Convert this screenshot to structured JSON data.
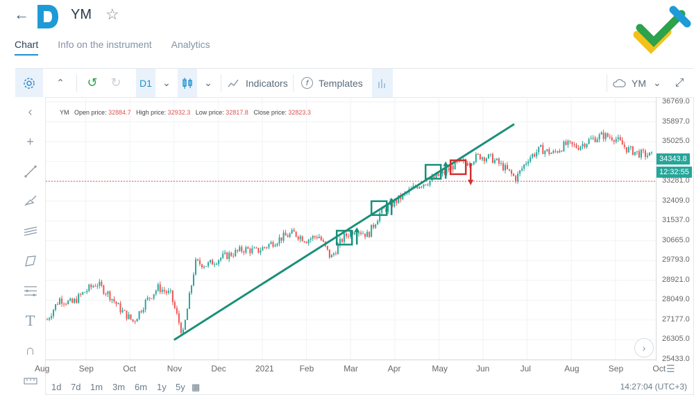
{
  "header": {
    "back_icon": "arrow-left-icon",
    "title": "YM",
    "star_icon": "star-icon",
    "tabs": [
      {
        "label": "Chart",
        "active": true
      },
      {
        "label": "Info on the instrument",
        "active": false
      },
      {
        "label": "Analytics",
        "active": false
      }
    ]
  },
  "toolbar": {
    "timeframe": "D1",
    "indicators_label": "Indicators",
    "templates_label": "Templates",
    "symbol": "YM"
  },
  "legend": {
    "symbol": "YM",
    "open_label": "Open price:",
    "open_value": "32884.7",
    "high_label": "High price:",
    "high_value": "32932.3",
    "low_label": "Low price:",
    "low_value": "32817.8",
    "close_label": "Close price:",
    "close_value": "32823.3"
  },
  "price_labels": {
    "last": "34343.8",
    "countdown": "12:32:55"
  },
  "bottom": {
    "periods": [
      "1d",
      "7d",
      "1m",
      "3m",
      "6m",
      "1y",
      "5y"
    ],
    "time": "14:27:04 (UTC+3)"
  },
  "colors": {
    "up": "#26a69a",
    "down": "#ef5350",
    "accent": "#1f8fd0",
    "trend": "#1a8f7a",
    "signal_down": "#d32f2f"
  },
  "chart_data": {
    "type": "candlestick",
    "y_ticks": [
      "36769.0",
      "35897.0",
      "35025.0",
      "34153.0",
      "33281.0",
      "32409.0",
      "31537.0",
      "30665.0",
      "29793.0",
      "28921.0",
      "28049.0",
      "27177.0",
      "26305.0",
      "25433.0"
    ],
    "ylim": [
      25433,
      36769
    ],
    "x_ticks": [
      "Aug",
      "Sep",
      "Oct",
      "Nov",
      "Dec",
      "2021",
      "Feb",
      "Mar",
      "Apr",
      "May",
      "Jun",
      "Jul",
      "Aug",
      "Sep",
      "Oct"
    ],
    "dotted_level": 33281,
    "trendline": {
      "from_month": "Nov",
      "from_value": 26300,
      "to_month": "Jun",
      "to_value": 35800
    },
    "signals": [
      {
        "month": "Mar",
        "value": 30800,
        "direction": "up"
      },
      {
        "month": "Apr",
        "value": 32100,
        "direction": "up"
      },
      {
        "month": "May",
        "value": 33700,
        "direction": "up"
      },
      {
        "month": "May",
        "value": 33900,
        "direction": "down"
      }
    ],
    "price_path": [
      27200,
      28100,
      27900,
      28400,
      28800,
      28300,
      27600,
      27100,
      28000,
      28600,
      28300,
      26500,
      29700,
      29600,
      29900,
      30100,
      30300,
      30200,
      30500,
      30800,
      31000,
      30700,
      30900,
      29900,
      30800,
      31200,
      30900,
      31900,
      32300,
      32700,
      33100,
      33300,
      33600,
      34000,
      34100,
      34400,
      34300,
      33900,
      33400,
      34300,
      34700,
      34500,
      34900,
      34800,
      35100,
      35300,
      35200,
      34700,
      34500,
      34400
    ]
  }
}
